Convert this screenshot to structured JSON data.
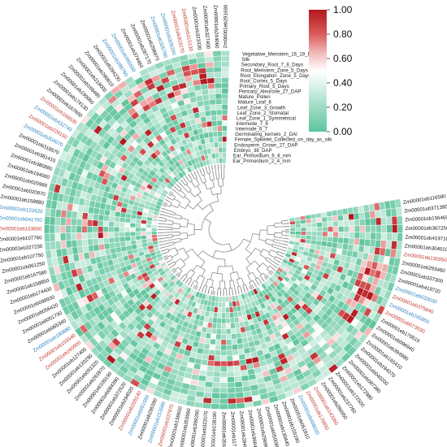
{
  "chart_data": {
    "type": "heatmap",
    "layout": "circular",
    "title": "",
    "colorscale": {
      "stops": [
        {
          "value": 0.0,
          "color": "#5ec49c"
        },
        {
          "value": 0.2,
          "color": "#9edcc4"
        },
        {
          "value": 0.4,
          "color": "#e4f5ee"
        },
        {
          "value": 0.5,
          "color": "#ffffff"
        },
        {
          "value": 0.65,
          "color": "#f0b7b5"
        },
        {
          "value": 0.8,
          "color": "#d95b5b"
        },
        {
          "value": 1.0,
          "color": "#b2171f"
        }
      ],
      "min": 0.0,
      "max": 1.0,
      "ticks": [
        "0.00",
        "0.20",
        "0.40",
        "0.60",
        "0.80",
        "1.00"
      ]
    },
    "label_colors": {
      "default": "#111111",
      "red": "#c0392b",
      "blue": "#2e86c1"
    },
    "tissues": [
      "Vegetative_Meristem_16_19_Days",
      "Silk",
      "Secondary_Root_7_8_Days",
      "Root_Meristem_Zone_5_Days",
      "Root_Elongation_Zone_5_Days",
      "Root_Cortex_5_Days",
      "Primary_Root_5_Days",
      "Pericarp_Aleurone_27_DAP",
      "Mature_Pollen",
      "Mature_Leaf_8",
      "Leaf_Zone_3_Growth",
      "Leaf_Zone_2_Stomatal",
      "Leaf_Zone_1_Symmetrical",
      "Internode_7_8",
      "Internode_6_7",
      "Germinating_kernels_2_DAI",
      "Female_Spikelet_Collected_on_day_as_silk",
      "Endosperm_Crown_27_DAP",
      "Embryo_38_DAP",
      "Ear_Primordium_6_8_mm",
      "Ear_Primordium_2_4_mm"
    ],
    "genes": [
      {
        "id": "Zm00001eb116590",
        "color": "default"
      },
      {
        "id": "Zm00001eb371390",
        "color": "default"
      },
      {
        "id": "Zm00001eb156460",
        "color": "default"
      },
      {
        "id": "Zm00001eb367250",
        "color": "default"
      },
      {
        "id": "Zm00001eb419710",
        "color": "default"
      },
      {
        "id": "Zm00001eb304010",
        "color": "default"
      },
      {
        "id": "Zm00001eb130050",
        "color": "red"
      },
      {
        "id": "Zm00001eb293460",
        "color": "default"
      },
      {
        "id": "Zm00001eb337300",
        "color": "default"
      },
      {
        "id": "Zm00001eb419720",
        "color": "default"
      },
      {
        "id": "Zm00001eb033030",
        "color": "blue"
      },
      {
        "id": "Zm00001eb375840",
        "color": "red"
      },
      {
        "id": "Zm00001eb245850",
        "color": "blue"
      },
      {
        "id": "Zm00001eb073030",
        "color": "red"
      },
      {
        "id": "Zm00001eb170510",
        "color": "default"
      },
      {
        "id": "Zm00001eb096940",
        "color": "default"
      },
      {
        "id": "Zm00001eb394980",
        "color": "default"
      },
      {
        "id": "Zm00001eb165410",
        "color": "default"
      },
      {
        "id": "Zm00001eb194070",
        "color": "default"
      },
      {
        "id": "Zm00001eb040200",
        "color": "default"
      },
      {
        "id": "Zm00001eb087380",
        "color": "default"
      },
      {
        "id": "Zm00001eb172980",
        "color": "default"
      },
      {
        "id": "Zm00001eb172500",
        "color": "default"
      },
      {
        "id": "Zm00001eb237760",
        "color": "default"
      },
      {
        "id": "Zm00001eb286950",
        "color": "default"
      },
      {
        "id": "Zm00001eb142060",
        "color": "red"
      },
      {
        "id": "Zm00001eb176850",
        "color": "red"
      },
      {
        "id": "Zm00001eb408030",
        "color": "blue"
      },
      {
        "id": "Zm00001eb051910",
        "color": "default"
      },
      {
        "id": "Zm00001eb155190",
        "color": "default"
      },
      {
        "id": "Zm00001eb130440",
        "color": "default"
      },
      {
        "id": "Zm00001eb050080",
        "color": "default"
      },
      {
        "id": "Zm00001eb296960",
        "color": "default"
      },
      {
        "id": "Zm00001eb366470",
        "color": "default"
      },
      {
        "id": "Zm00001eb284950",
        "color": "default"
      },
      {
        "id": "Zm00001eb117190",
        "color": "default"
      },
      {
        "id": "Zm00001eb356400",
        "color": "default"
      },
      {
        "id": "Zm00001eb108190",
        "color": "default"
      },
      {
        "id": "Zm00001eb322070",
        "color": "default"
      },
      {
        "id": "Zm00001eb399200",
        "color": "default"
      },
      {
        "id": "Zm00001eb353960",
        "color": "default"
      },
      {
        "id": "Zm00001eb158600",
        "color": "default"
      },
      {
        "id": "Zm00001eb337970",
        "color": "red"
      },
      {
        "id": "Zm00001eb153580",
        "color": "blue"
      },
      {
        "id": "Zm00001eb295390",
        "color": "default"
      },
      {
        "id": "Zm00001eb051560",
        "color": "blue"
      },
      {
        "id": "Zm00001eb205140",
        "color": "red"
      },
      {
        "id": "Zm00001eb294020",
        "color": "default"
      },
      {
        "id": "Zm00001eb372520",
        "color": "default"
      },
      {
        "id": "Zm00001eb084390",
        "color": "default"
      },
      {
        "id": "Zm00001eb109190",
        "color": "default"
      },
      {
        "id": "Zm00001eb263970",
        "color": "default"
      },
      {
        "id": "Zm00001eb092320",
        "color": "default"
      },
      {
        "id": "Zm00001eb120290",
        "color": "default"
      },
      {
        "id": "Zm00001eb127400",
        "color": "default"
      },
      {
        "id": "Zm00001eb160900",
        "color": "red"
      },
      {
        "id": "Zm00001eb155540",
        "color": "red"
      },
      {
        "id": "Zm00001eb180880",
        "color": "blue"
      },
      {
        "id": "Zm00001eb065340",
        "color": "default"
      },
      {
        "id": "Zm00001eb051730",
        "color": "default"
      },
      {
        "id": "Zm00001eb056420",
        "color": "default"
      },
      {
        "id": "Zm00001eb098930",
        "color": "default"
      },
      {
        "id": "Zm00001eb174400",
        "color": "default"
      },
      {
        "id": "Zm00001eb158850",
        "color": "default"
      },
      {
        "id": "Zm00001eb167580",
        "color": "default"
      },
      {
        "id": "Zm00001eb061250",
        "color": "default"
      },
      {
        "id": "Zm00001eb107750",
        "color": "default"
      },
      {
        "id": "Zm00001eb327230",
        "color": "default"
      },
      {
        "id": "Zm00001eb107760",
        "color": "default"
      },
      {
        "id": "Zm00001eb153660",
        "color": "red"
      },
      {
        "id": "Zm00001eb041700",
        "color": "blue"
      },
      {
        "id": "Zm00001eb122620",
        "color": "blue"
      },
      {
        "id": "Zm00001eb158880",
        "color": "default"
      },
      {
        "id": "Zm00001eb020970",
        "color": "default"
      },
      {
        "id": "Zm00001eb020980",
        "color": "default"
      },
      {
        "id": "Zm00001eb194060",
        "color": "default"
      },
      {
        "id": "Zm00001eb380880",
        "color": "default"
      },
      {
        "id": "Zm00001eb381410",
        "color": "default"
      },
      {
        "id": "Zm00001eb318570",
        "color": "default"
      },
      {
        "id": "Zm00001eb304070",
        "color": "blue"
      },
      {
        "id": "Zm00001eb229150",
        "color": "red"
      },
      {
        "id": "Zm00001eb432740",
        "color": "blue"
      },
      {
        "id": "Zm00001eb166530",
        "color": "red"
      },
      {
        "id": "Zm00001eb167600",
        "color": "default"
      },
      {
        "id": "Zm00001eb174130",
        "color": "default"
      },
      {
        "id": "Zm00001eb190060",
        "color": "default"
      },
      {
        "id": "Zm00001eb169480",
        "color": "default"
      },
      {
        "id": "Zm00001eb219000",
        "color": "default"
      },
      {
        "id": "Zm00001eb290810",
        "color": "default"
      },
      {
        "id": "Zm00001eb294230",
        "color": "default"
      },
      {
        "id": "Zm00001eb288760",
        "color": "blue"
      },
      {
        "id": "Zm00001eb395500",
        "color": "blue"
      },
      {
        "id": "Zm00001eb374460",
        "color": "default"
      },
      {
        "id": "Zm00001eb287170",
        "color": "default"
      },
      {
        "id": "Zm00001eb298970",
        "color": "default"
      },
      {
        "id": "Zm00001eb305760",
        "color": "blue"
      },
      {
        "id": "Zm00001eb306200",
        "color": "blue"
      },
      {
        "id": "Zm00001eb303270",
        "color": "red"
      },
      {
        "id": "Zm00001eb315130",
        "color": "red"
      },
      {
        "id": "Zm00001eb323330",
        "color": "default"
      },
      {
        "id": "Zm00001eb327400",
        "color": "default"
      },
      {
        "id": "Zm00001eb244060",
        "color": "default"
      },
      {
        "id": "Zm00001eb291690",
        "color": "default"
      }
    ]
  }
}
